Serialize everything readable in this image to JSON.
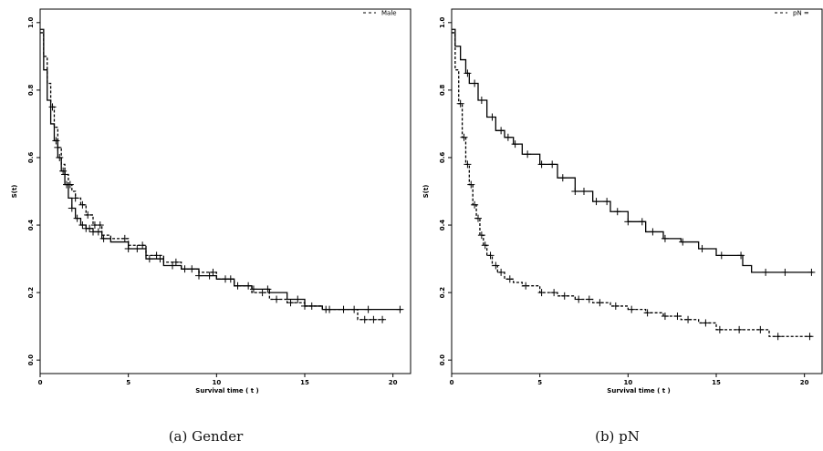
{
  "chart_data": [
    {
      "type": "line",
      "xlabel": "Survival time ( t )",
      "ylabel": "S(t)",
      "xlim": [
        0,
        21
      ],
      "ylim": [
        0,
        1
      ],
      "xticks": [
        "0",
        "5",
        "10",
        "15",
        "20"
      ],
      "yticks": [
        "0.0",
        "0.2",
        "0.4",
        "0.6",
        "0.8",
        "1.0"
      ],
      "legend": {
        "position": "top-right",
        "entries": [
          "Male"
        ]
      },
      "caption": "(a) Gender",
      "series": [
        {
          "style": "solid",
          "x": [
            0,
            0.2,
            0.4,
            0.6,
            0.8,
            1.0,
            1.2,
            1.4,
            1.6,
            1.8,
            2.0,
            2.3,
            2.6,
            3.0,
            3.5,
            4.0,
            5.0,
            6.0,
            7.0,
            8.0,
            9.0,
            10.0,
            11.0,
            12.0,
            13.0,
            14.0,
            15.0,
            16.0,
            17.0,
            18.0,
            19.0,
            20.5
          ],
          "y": [
            0.98,
            0.86,
            0.77,
            0.7,
            0.65,
            0.6,
            0.56,
            0.52,
            0.48,
            0.45,
            0.42,
            0.4,
            0.39,
            0.38,
            0.36,
            0.35,
            0.33,
            0.3,
            0.28,
            0.27,
            0.25,
            0.24,
            0.22,
            0.21,
            0.2,
            0.18,
            0.16,
            0.15,
            0.15,
            0.15,
            0.15,
            0.15
          ],
          "censored": [
            0.9,
            1.1,
            1.3,
            1.5,
            1.8,
            2.1,
            2.4,
            2.6,
            2.8,
            3.0,
            3.3,
            3.6,
            5.0,
            5.5,
            6.2,
            6.8,
            7.5,
            8.2,
            9.0,
            9.6,
            10.5,
            11.2,
            12.1,
            12.9,
            14.6,
            15.4,
            16.2,
            17.8,
            18.6,
            20.4
          ]
        },
        {
          "style": "dashed",
          "x": [
            0,
            0.2,
            0.4,
            0.6,
            0.8,
            1.0,
            1.2,
            1.4,
            1.6,
            1.8,
            2.0,
            2.3,
            2.6,
            3.0,
            3.5,
            4.0,
            5.0,
            6.0,
            7.0,
            8.0,
            9.0,
            10.0,
            11.0,
            12.0,
            13.0,
            14.0,
            15.0,
            16.0,
            17.0,
            18.0,
            19.0,
            19.5
          ],
          "y": [
            0.97,
            0.9,
            0.82,
            0.75,
            0.69,
            0.63,
            0.58,
            0.55,
            0.52,
            0.5,
            0.48,
            0.46,
            0.43,
            0.4,
            0.37,
            0.36,
            0.34,
            0.31,
            0.29,
            0.27,
            0.26,
            0.24,
            0.22,
            0.2,
            0.18,
            0.17,
            0.16,
            0.15,
            0.15,
            0.12,
            0.12,
            0.12
          ],
          "censored": [
            0.7,
            1.0,
            1.4,
            1.7,
            2.0,
            2.4,
            2.7,
            3.1,
            3.4,
            4.8,
            5.8,
            6.6,
            7.7,
            8.6,
            9.8,
            10.8,
            11.8,
            12.6,
            13.4,
            14.2,
            15.0,
            16.4,
            17.2,
            18.4,
            18.9,
            19.4
          ]
        }
      ]
    },
    {
      "type": "line",
      "xlabel": "Survival time ( t )",
      "ylabel": "S(t)",
      "xlim": [
        0,
        21
      ],
      "ylim": [
        0,
        1
      ],
      "xticks": [
        "0",
        "5",
        "10",
        "15",
        "20"
      ],
      "yticks": [
        "0.0",
        "0.2",
        "0.4",
        "0.6",
        "0.8",
        "1.0"
      ],
      "legend": {
        "position": "top-right",
        "entries": [
          "pN ="
        ]
      },
      "caption": "(b) pN",
      "series": [
        {
          "style": "solid",
          "x": [
            0,
            0.2,
            0.5,
            0.8,
            1.0,
            1.5,
            2.0,
            2.5,
            3.0,
            3.5,
            4.0,
            5.0,
            6.0,
            7.0,
            8.0,
            9.0,
            10.0,
            11.0,
            12.0,
            13.0,
            14.0,
            15.0,
            16.0,
            16.5,
            17.0,
            18.0,
            19.0,
            20.5
          ],
          "y": [
            0.98,
            0.93,
            0.89,
            0.85,
            0.82,
            0.77,
            0.72,
            0.68,
            0.66,
            0.64,
            0.61,
            0.58,
            0.54,
            0.5,
            0.47,
            0.44,
            0.41,
            0.38,
            0.36,
            0.35,
            0.33,
            0.31,
            0.31,
            0.28,
            0.26,
            0.26,
            0.26,
            0.26
          ],
          "censored": [
            0.9,
            1.3,
            1.7,
            2.3,
            2.8,
            3.2,
            3.6,
            4.3,
            5.1,
            5.7,
            6.3,
            7.0,
            7.5,
            8.2,
            8.8,
            9.4,
            10.0,
            10.8,
            11.4,
            12.1,
            13.1,
            14.2,
            15.3,
            16.4,
            17.8,
            18.9,
            20.4
          ]
        },
        {
          "style": "dashed",
          "x": [
            0,
            0.2,
            0.4,
            0.6,
            0.8,
            1.0,
            1.2,
            1.4,
            1.6,
            1.8,
            2.0,
            2.3,
            2.6,
            3.0,
            3.5,
            4.0,
            5.0,
            6.0,
            7.0,
            8.0,
            9.0,
            10.0,
            11.0,
            12.0,
            13.0,
            14.0,
            15.0,
            16.0,
            17.0,
            18.0,
            19.0,
            20.5
          ],
          "y": [
            0.97,
            0.86,
            0.76,
            0.66,
            0.58,
            0.52,
            0.46,
            0.42,
            0.37,
            0.34,
            0.31,
            0.28,
            0.26,
            0.24,
            0.23,
            0.22,
            0.2,
            0.19,
            0.18,
            0.17,
            0.16,
            0.15,
            0.14,
            0.13,
            0.12,
            0.11,
            0.09,
            0.09,
            0.09,
            0.07,
            0.07,
            0.07
          ],
          "censored": [
            0.5,
            0.7,
            0.9,
            1.1,
            1.3,
            1.5,
            1.7,
            1.9,
            2.2,
            2.5,
            2.8,
            3.3,
            4.2,
            5.1,
            5.8,
            6.4,
            7.2,
            7.8,
            8.4,
            9.3,
            10.2,
            11.1,
            12.1,
            12.8,
            13.4,
            14.4,
            15.2,
            16.3,
            17.5,
            18.5,
            20.3
          ]
        }
      ]
    }
  ]
}
